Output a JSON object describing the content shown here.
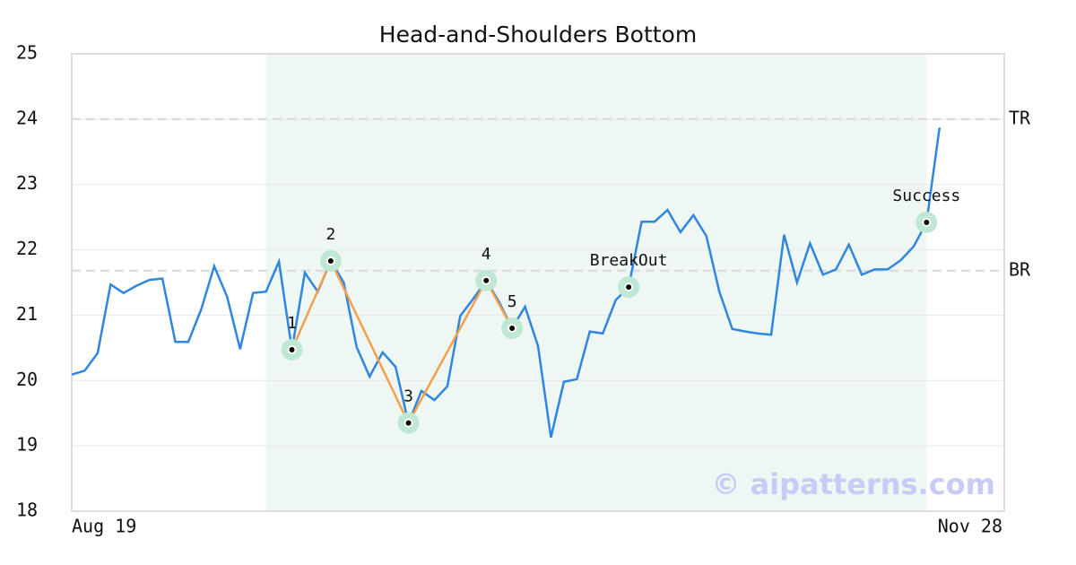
{
  "chart_data": {
    "type": "line",
    "title": "Head-and-Shoulders Bottom",
    "x": [
      0,
      1,
      2,
      3,
      4,
      5,
      6,
      7,
      8,
      9,
      10,
      11,
      12,
      13,
      14,
      15,
      16,
      17,
      18,
      19,
      20,
      21,
      22,
      23,
      24,
      25,
      26,
      27,
      28,
      29,
      30,
      31,
      32,
      33,
      34,
      35,
      36,
      37,
      38,
      39,
      40,
      41,
      42,
      43,
      44,
      45,
      46,
      47,
      48,
      49,
      50,
      51,
      52,
      53,
      54,
      55,
      56,
      57,
      58,
      59,
      60,
      61,
      62,
      63,
      64,
      65,
      66,
      67
    ],
    "values": [
      20.09,
      20.15,
      20.42,
      21.47,
      21.34,
      21.45,
      21.54,
      21.56,
      20.59,
      20.59,
      21.09,
      21.75,
      21.28,
      20.48,
      21.34,
      21.36,
      21.82,
      20.47,
      21.65,
      21.36,
      21.83,
      21.5,
      20.51,
      20.06,
      20.43,
      20.21,
      19.35,
      19.84,
      19.7,
      19.91,
      20.99,
      21.25,
      21.53,
      21.2,
      20.8,
      21.13,
      20.53,
      19.13,
      19.98,
      20.02,
      20.75,
      20.72,
      21.23,
      21.43,
      22.43,
      22.43,
      22.61,
      22.27,
      22.53,
      22.21,
      21.36,
      20.79,
      20.75,
      20.72,
      20.7,
      22.23,
      21.5,
      22.1,
      21.62,
      21.7,
      22.08,
      21.62,
      21.7,
      21.7,
      21.84,
      22.05,
      22.42,
      23.87
    ],
    "color": "#2e86de",
    "xlim": [
      0,
      72
    ],
    "xticks": [
      {
        "value": 0,
        "label": "Aug 19"
      },
      {
        "value": 72,
        "label": "Nov 28"
      }
    ],
    "ylim": [
      18,
      25
    ],
    "yticks": [
      18,
      19,
      20,
      21,
      22,
      23,
      24,
      25
    ],
    "grid": true,
    "shade_xlim": [
      15,
      66
    ],
    "pattern": {
      "color": "#f4a04a",
      "x": [
        17,
        20,
        26,
        32,
        34
      ],
      "values": [
        20.47,
        21.83,
        19.35,
        21.53,
        20.8
      ],
      "labels": [
        "1",
        "2",
        "3",
        "4",
        "5"
      ]
    },
    "events": [
      {
        "label": "BreakOut",
        "x": 43,
        "value": 21.43
      },
      {
        "label": "Success",
        "x": 66,
        "value": 22.42
      }
    ],
    "hlines": [
      {
        "label": "TR",
        "value": 24
      },
      {
        "label": "BR",
        "value": 21.68
      }
    ],
    "watermark": "© aipatterns.com"
  }
}
